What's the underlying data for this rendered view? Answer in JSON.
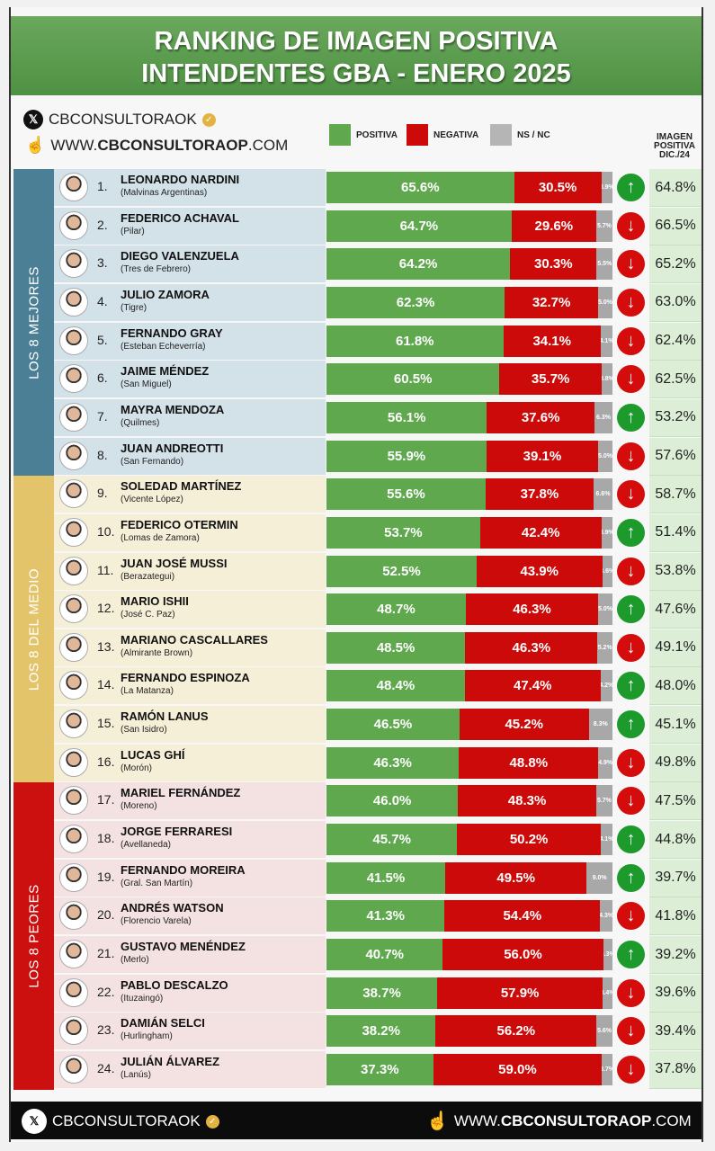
{
  "header": {
    "title_line1": "RANKING DE IMAGEN POSITIVA",
    "title_line2": "INTENDENTES GBA - ENERO 2025",
    "x_handle": "CBCONSULTORAOK",
    "web_prefix": "WWW.",
    "web_bold": "CBCONSULTORAOP",
    "web_suffix": ".COM"
  },
  "legend": {
    "positive": "POSITIVA",
    "negative": "NEGATIVA",
    "nsnc": "NS / NC",
    "dic_header": [
      "IMAGEN",
      "POSITIVA",
      "DIC./24"
    ]
  },
  "colors": {
    "positive": "#5fa84e",
    "negative": "#cc0a0a",
    "nsnc": "#a8a8a8",
    "up": "#1c9a2c",
    "down": "#d40c0c",
    "title_band": "#5c9e50"
  },
  "groups": [
    {
      "label": "LOS 8 MEJORES",
      "color": "#4a7f95",
      "row_bg": "#d3e1e8"
    },
    {
      "label": "LOS 8 DEL MEDIO",
      "color": "#e4c46a",
      "row_bg": "#f6efd8"
    },
    {
      "label": "LOS 8 PEORES",
      "color": "#cc1010",
      "row_bg": "#f4e2e2"
    }
  ],
  "footer": {
    "x_handle": "CBCONSULTORAOK",
    "web_prefix": "WWW.",
    "web_bold": "CBCONSULTORAOP",
    "web_suffix": ".COM"
  },
  "chart_data": {
    "type": "bar",
    "stacked": true,
    "orientation": "horizontal",
    "title": "RANKING DE IMAGEN POSITIVA INTENDENTES GBA - ENERO 2025",
    "series_names": [
      "POSITIVA",
      "NEGATIVA",
      "NS / NC"
    ],
    "rows": [
      {
        "rank": "1.",
        "name": "LEONARDO NARDINI",
        "municipality": "(Malvinas Argentinas)",
        "positive": 65.6,
        "negative": 30.5,
        "nsnc": 3.9,
        "trend": "up",
        "dic24": "64.8%"
      },
      {
        "rank": "2.",
        "name": "FEDERICO ACHAVAL",
        "municipality": "(Pilar)",
        "positive": 64.7,
        "negative": 29.6,
        "nsnc": 5.7,
        "trend": "down",
        "dic24": "66.5%"
      },
      {
        "rank": "3.",
        "name": "DIEGO VALENZUELA",
        "municipality": "(Tres de Febrero)",
        "positive": 64.2,
        "negative": 30.3,
        "nsnc": 5.5,
        "trend": "down",
        "dic24": "65.2%"
      },
      {
        "rank": "4.",
        "name": "JULIO ZAMORA",
        "municipality": "(Tigre)",
        "positive": 62.3,
        "negative": 32.7,
        "nsnc": 5.0,
        "trend": "down",
        "dic24": "63.0%"
      },
      {
        "rank": "5.",
        "name": "FERNANDO GRAY",
        "municipality": "(Esteban Echeverría)",
        "positive": 61.8,
        "negative": 34.1,
        "nsnc": 4.1,
        "trend": "down",
        "dic24": "62.4%"
      },
      {
        "rank": "6.",
        "name": "JAIME MÉNDEZ",
        "municipality": "(San Miguel)",
        "positive": 60.5,
        "negative": 35.7,
        "nsnc": 3.8,
        "trend": "down",
        "dic24": "62.5%"
      },
      {
        "rank": "7.",
        "name": "MAYRA MENDOZA",
        "municipality": "(Quilmes)",
        "positive": 56.1,
        "negative": 37.6,
        "nsnc": 6.3,
        "trend": "up",
        "dic24": "53.2%"
      },
      {
        "rank": "8.",
        "name": "JUAN ANDREOTTI",
        "municipality": "(San Fernando)",
        "positive": 55.9,
        "negative": 39.1,
        "nsnc": 5.0,
        "trend": "down",
        "dic24": "57.6%"
      },
      {
        "rank": "9.",
        "name": "SOLEDAD MARTÍNEZ",
        "municipality": "(Vicente López)",
        "positive": 55.6,
        "negative": 37.8,
        "nsnc": 6.6,
        "trend": "down",
        "dic24": "58.7%"
      },
      {
        "rank": "10.",
        "name": "FEDERICO OTERMIN",
        "municipality": "(Lomas de Zamora)",
        "positive": 53.7,
        "negative": 42.4,
        "nsnc": 3.9,
        "trend": "up",
        "dic24": "51.4%"
      },
      {
        "rank": "11.",
        "name": "JUAN JOSÉ MUSSI",
        "municipality": "(Berazategui)",
        "positive": 52.5,
        "negative": 43.9,
        "nsnc": 3.6,
        "trend": "down",
        "dic24": "53.8%"
      },
      {
        "rank": "12.",
        "name": "MARIO ISHII",
        "municipality": "(José C. Paz)",
        "positive": 48.7,
        "negative": 46.3,
        "nsnc": 5.0,
        "trend": "up",
        "dic24": "47.6%"
      },
      {
        "rank": "13.",
        "name": "MARIANO CASCALLARES",
        "municipality": "(Almirante Brown)",
        "positive": 48.5,
        "negative": 46.3,
        "nsnc": 5.2,
        "trend": "down",
        "dic24": "49.1%"
      },
      {
        "rank": "14.",
        "name": "FERNANDO ESPINOZA",
        "municipality": "(La Matanza)",
        "positive": 48.4,
        "negative": 47.4,
        "nsnc": 4.2,
        "trend": "up",
        "dic24": "48.0%"
      },
      {
        "rank": "15.",
        "name": "RAMÓN LANUS",
        "municipality": "(San Isidro)",
        "positive": 46.5,
        "negative": 45.2,
        "nsnc": 8.3,
        "trend": "up",
        "dic24": "45.1%"
      },
      {
        "rank": "16.",
        "name": "LUCAS GHÍ",
        "municipality": "(Morón)",
        "positive": 46.3,
        "negative": 48.8,
        "nsnc": 4.9,
        "trend": "down",
        "dic24": "49.8%"
      },
      {
        "rank": "17.",
        "name": "MARIEL FERNÁNDEZ",
        "municipality": "(Moreno)",
        "positive": 46.0,
        "negative": 48.3,
        "nsnc": 5.7,
        "trend": "down",
        "dic24": "47.5%"
      },
      {
        "rank": "18.",
        "name": "JORGE FERRARESI",
        "municipality": "(Avellaneda)",
        "positive": 45.7,
        "negative": 50.2,
        "nsnc": 4.1,
        "trend": "up",
        "dic24": "44.8%"
      },
      {
        "rank": "19.",
        "name": "FERNANDO MOREIRA",
        "municipality": "(Gral. San Martín)",
        "positive": 41.5,
        "negative": 49.5,
        "nsnc": 9.0,
        "trend": "up",
        "dic24": "39.7%"
      },
      {
        "rank": "20.",
        "name": "ANDRÉS WATSON",
        "municipality": "(Florencio Varela)",
        "positive": 41.3,
        "negative": 54.4,
        "nsnc": 4.3,
        "trend": "down",
        "dic24": "41.8%"
      },
      {
        "rank": "21.",
        "name": "GUSTAVO MENÉNDEZ",
        "municipality": "(Merlo)",
        "positive": 40.7,
        "negative": 56.0,
        "nsnc": 3.3,
        "trend": "up",
        "dic24": "39.2%"
      },
      {
        "rank": "22.",
        "name": "PABLO DESCALZO",
        "municipality": "(Ituzaingó)",
        "positive": 38.7,
        "negative": 57.9,
        "nsnc": 3.4,
        "trend": "down",
        "dic24": "39.6%"
      },
      {
        "rank": "23.",
        "name": "DAMIÁN SELCI",
        "municipality": "(Hurlingham)",
        "positive": 38.2,
        "negative": 56.2,
        "nsnc": 5.6,
        "trend": "down",
        "dic24": "39.4%"
      },
      {
        "rank": "24.",
        "name": "JULIÁN ÁLVAREZ",
        "municipality": "(Lanús)",
        "positive": 37.3,
        "negative": 59.0,
        "nsnc": 3.7,
        "trend": "down",
        "dic24": "37.8%"
      }
    ]
  }
}
